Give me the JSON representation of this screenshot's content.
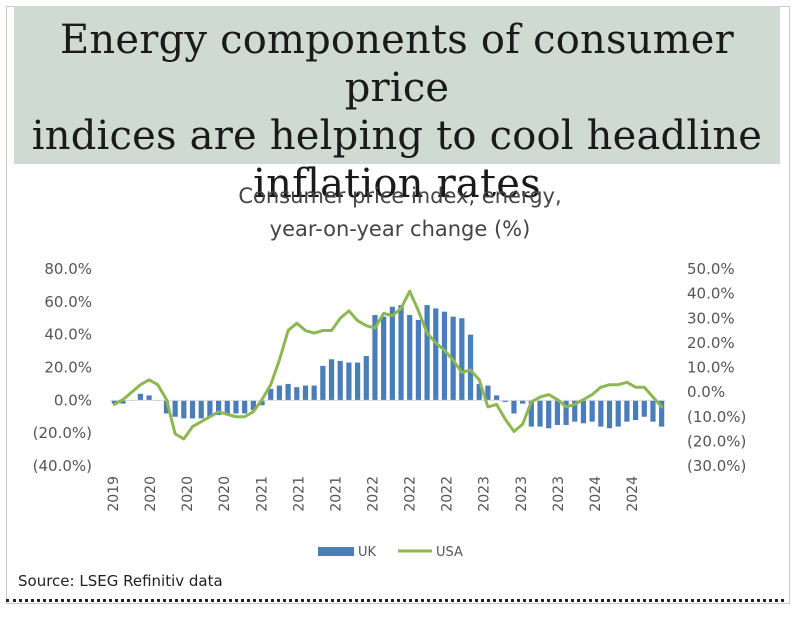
{
  "headline": {
    "lines": [
      "Energy components of consumer price",
      "indices are helping to cool headline",
      "inflation rates"
    ]
  },
  "source": "Source: LSEG Refinitiv data",
  "colors": {
    "uk": "#4a7ebb",
    "usa": "#8db750",
    "headline_bg": "#cfdad2"
  },
  "chart_data": {
    "type": "bar+line",
    "title_lines": [
      "Consumer price index, energy,",
      "year-on-year change (%)"
    ],
    "left_axis": {
      "ylim": [
        -40,
        80
      ],
      "ticks": [
        80,
        60,
        40,
        20,
        0,
        -20,
        -40
      ],
      "tick_labels": [
        "80.0%",
        "60.0%",
        "40.0%",
        "20.0%",
        "0.0%",
        "(20.0%)",
        "(40.0%)"
      ]
    },
    "right_axis": {
      "ylim": [
        -30,
        50
      ],
      "ticks": [
        50,
        40,
        30,
        20,
        10,
        0,
        -10,
        -20,
        -30
      ],
      "tick_labels": [
        "50.0%",
        "40.0%",
        "30.0%",
        "20.0%",
        "10.0%",
        "0.0%",
        "(10.0%)",
        "(20.0%)",
        "(30.0%)"
      ]
    },
    "x_tick_labels": [
      "2019",
      "2020",
      "2020",
      "2020",
      "2021",
      "2021",
      "2021",
      "2022",
      "2022",
      "2022",
      "2023",
      "2023",
      "2023",
      "2024",
      "2024"
    ],
    "n_periods": 64,
    "series": [
      {
        "name": "UK",
        "type": "bar",
        "axis": "left",
        "values": [
          -2,
          -2,
          0,
          4,
          3,
          0,
          -8,
          -10,
          -11,
          -11,
          -11,
          -10,
          -9,
          -9,
          -8,
          -8,
          -6,
          -3,
          7,
          9,
          10,
          8,
          9,
          9,
          21,
          25,
          24,
          23,
          23,
          27,
          52,
          51,
          57,
          58,
          52,
          49,
          58,
          56,
          54,
          51,
          50,
          40,
          10,
          9,
          3,
          -1,
          -8,
          -2,
          -16,
          -16,
          -17,
          -15,
          -15,
          -13,
          -14,
          -13,
          -16,
          -17,
          -16,
          -13,
          -12,
          -10,
          -13,
          -16
        ]
      },
      {
        "name": "USA",
        "type": "line",
        "axis": "right",
        "values": [
          -5,
          -3,
          0,
          3,
          5,
          3,
          -3,
          -17,
          -19,
          -14,
          -12,
          -10,
          -8,
          -9,
          -10,
          -10,
          -8,
          -3,
          3,
          13,
          25,
          28,
          25,
          24,
          25,
          25,
          30,
          33,
          29,
          27,
          26,
          32,
          31,
          34,
          41,
          33,
          24,
          20,
          17,
          13,
          8,
          9,
          5,
          -6,
          -5,
          -11,
          -16,
          -13,
          -4,
          -2,
          -1,
          -3,
          -6,
          -5,
          -3,
          -1,
          2,
          3,
          3,
          4,
          2,
          2,
          -2,
          -6
        ]
      }
    ],
    "legend": {
      "position": "bottom",
      "entries": [
        "UK",
        "USA"
      ]
    }
  }
}
